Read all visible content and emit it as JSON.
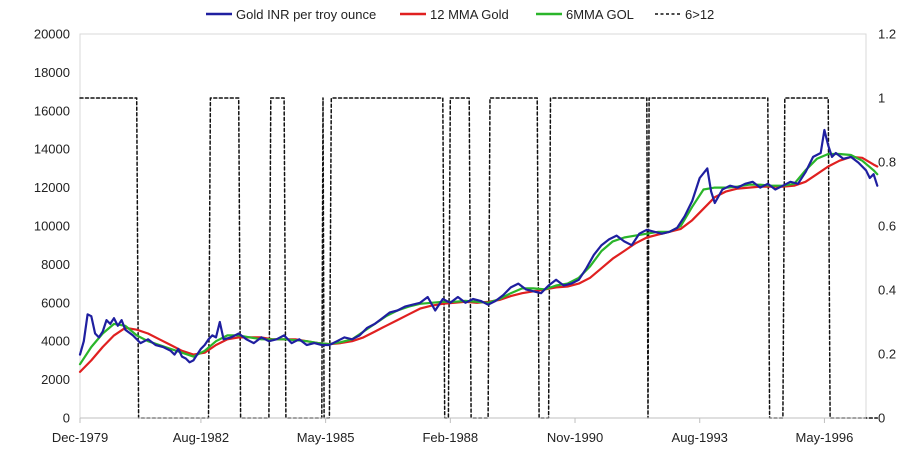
{
  "chart_data": {
    "type": "line",
    "title": "",
    "xlabel": "",
    "ylabel": "",
    "x_tick_labels": [
      "Dec-1979",
      "Aug-1982",
      "May-1985",
      "Feb-1988",
      "Nov-1990",
      "Aug-1993",
      "May-1996"
    ],
    "x_tick_months": [
      0,
      32,
      65,
      98,
      131,
      164,
      197
    ],
    "x_range_months": [
      0,
      208
    ],
    "ylim": [
      0,
      20000
    ],
    "y_ticks": [
      0,
      2000,
      4000,
      6000,
      8000,
      10000,
      12000,
      14000,
      16000,
      18000,
      20000
    ],
    "y2lim": [
      0,
      1.2
    ],
    "y2_ticks": [
      0,
      0.2,
      0.4,
      0.6,
      0.8,
      1,
      1.2
    ],
    "y2_tick_labels": [
      "0",
      "0.2",
      "0.4",
      "0.6",
      "0.8",
      "1",
      "1.2"
    ],
    "grid": false,
    "legend_position": "top",
    "series": [
      {
        "name": "Gold INR per troy ounce",
        "color": "#1f1fa0",
        "axis": "left",
        "points": [
          [
            0,
            3300
          ],
          [
            1,
            4000
          ],
          [
            2,
            5400
          ],
          [
            3,
            5300
          ],
          [
            4,
            4400
          ],
          [
            5,
            4200
          ],
          [
            6,
            4500
          ],
          [
            7,
            5100
          ],
          [
            8,
            4900
          ],
          [
            9,
            5200
          ],
          [
            10,
            4800
          ],
          [
            11,
            5100
          ],
          [
            12,
            4600
          ],
          [
            14,
            4300
          ],
          [
            16,
            3900
          ],
          [
            18,
            4100
          ],
          [
            20,
            3800
          ],
          [
            22,
            3700
          ],
          [
            24,
            3500
          ],
          [
            25,
            3300
          ],
          [
            26,
            3600
          ],
          [
            27,
            3200
          ],
          [
            28,
            3100
          ],
          [
            29,
            2900
          ],
          [
            30,
            3000
          ],
          [
            31,
            3300
          ],
          [
            32,
            3600
          ],
          [
            33,
            3800
          ],
          [
            34,
            4100
          ],
          [
            35,
            4300
          ],
          [
            36,
            4200
          ],
          [
            37,
            5000
          ],
          [
            38,
            4100
          ],
          [
            40,
            4200
          ],
          [
            42,
            4400
          ],
          [
            44,
            4100
          ],
          [
            46,
            3900
          ],
          [
            48,
            4200
          ],
          [
            50,
            4000
          ],
          [
            52,
            4100
          ],
          [
            54,
            4300
          ],
          [
            56,
            3900
          ],
          [
            58,
            4100
          ],
          [
            60,
            3800
          ],
          [
            62,
            3900
          ],
          [
            64,
            3800
          ],
          [
            66,
            3800
          ],
          [
            68,
            4000
          ],
          [
            70,
            4200
          ],
          [
            72,
            4100
          ],
          [
            74,
            4300
          ],
          [
            76,
            4700
          ],
          [
            78,
            4900
          ],
          [
            80,
            5200
          ],
          [
            82,
            5500
          ],
          [
            84,
            5600
          ],
          [
            86,
            5800
          ],
          [
            88,
            5900
          ],
          [
            90,
            6000
          ],
          [
            92,
            6300
          ],
          [
            94,
            5600
          ],
          [
            96,
            6200
          ],
          [
            98,
            6000
          ],
          [
            100,
            6300
          ],
          [
            102,
            6000
          ],
          [
            104,
            6200
          ],
          [
            106,
            6100
          ],
          [
            108,
            5900
          ],
          [
            110,
            6100
          ],
          [
            112,
            6400
          ],
          [
            114,
            6800
          ],
          [
            116,
            7000
          ],
          [
            118,
            6700
          ],
          [
            120,
            6600
          ],
          [
            122,
            6500
          ],
          [
            124,
            6900
          ],
          [
            126,
            7200
          ],
          [
            128,
            6900
          ],
          [
            130,
            7000
          ],
          [
            132,
            7200
          ],
          [
            134,
            7800
          ],
          [
            136,
            8500
          ],
          [
            138,
            9000
          ],
          [
            140,
            9300
          ],
          [
            142,
            9500
          ],
          [
            144,
            9200
          ],
          [
            146,
            9000
          ],
          [
            148,
            9600
          ],
          [
            150,
            9800
          ],
          [
            152,
            9700
          ],
          [
            154,
            9600
          ],
          [
            156,
            9700
          ],
          [
            158,
            9900
          ],
          [
            160,
            10500
          ],
          [
            162,
            11300
          ],
          [
            164,
            12500
          ],
          [
            166,
            13000
          ],
          [
            167,
            11800
          ],
          [
            168,
            11200
          ],
          [
            170,
            11900
          ],
          [
            172,
            12100
          ],
          [
            174,
            12000
          ],
          [
            176,
            12200
          ],
          [
            178,
            12300
          ],
          [
            180,
            12000
          ],
          [
            182,
            12200
          ],
          [
            184,
            11900
          ],
          [
            186,
            12100
          ],
          [
            188,
            12300
          ],
          [
            190,
            12200
          ],
          [
            192,
            12800
          ],
          [
            194,
            13600
          ],
          [
            196,
            13800
          ],
          [
            197,
            15000
          ],
          [
            198,
            14200
          ],
          [
            199,
            13600
          ],
          [
            200,
            13800
          ],
          [
            202,
            13500
          ],
          [
            204,
            13600
          ],
          [
            206,
            13300
          ],
          [
            208,
            12900
          ],
          [
            209,
            12500
          ],
          [
            210,
            12700
          ],
          [
            211,
            12100
          ]
        ]
      },
      {
        "name": "12 MMA Gold",
        "color": "#e02020",
        "axis": "left",
        "points": [
          [
            0,
            2400
          ],
          [
            3,
            3000
          ],
          [
            6,
            3700
          ],
          [
            9,
            4300
          ],
          [
            12,
            4700
          ],
          [
            15,
            4600
          ],
          [
            18,
            4400
          ],
          [
            21,
            4100
          ],
          [
            24,
            3800
          ],
          [
            27,
            3500
          ],
          [
            30,
            3300
          ],
          [
            33,
            3400
          ],
          [
            36,
            3800
          ],
          [
            39,
            4100
          ],
          [
            42,
            4200
          ],
          [
            45,
            4200
          ],
          [
            48,
            4200
          ],
          [
            51,
            4100
          ],
          [
            54,
            4100
          ],
          [
            57,
            4100
          ],
          [
            60,
            4000
          ],
          [
            63,
            3900
          ],
          [
            66,
            3850
          ],
          [
            69,
            3900
          ],
          [
            72,
            4000
          ],
          [
            75,
            4200
          ],
          [
            78,
            4500
          ],
          [
            81,
            4800
          ],
          [
            84,
            5100
          ],
          [
            87,
            5400
          ],
          [
            90,
            5700
          ],
          [
            93,
            5850
          ],
          [
            96,
            5950
          ],
          [
            99,
            6000
          ],
          [
            102,
            6050
          ],
          [
            105,
            6000
          ],
          [
            108,
            6050
          ],
          [
            111,
            6150
          ],
          [
            114,
            6350
          ],
          [
            117,
            6500
          ],
          [
            120,
            6600
          ],
          [
            123,
            6700
          ],
          [
            126,
            6800
          ],
          [
            129,
            6850
          ],
          [
            132,
            7000
          ],
          [
            135,
            7300
          ],
          [
            138,
            7800
          ],
          [
            141,
            8300
          ],
          [
            144,
            8700
          ],
          [
            147,
            9100
          ],
          [
            150,
            9400
          ],
          [
            153,
            9550
          ],
          [
            156,
            9700
          ],
          [
            159,
            9850
          ],
          [
            162,
            10300
          ],
          [
            165,
            10900
          ],
          [
            168,
            11500
          ],
          [
            171,
            11800
          ],
          [
            174,
            11950
          ],
          [
            177,
            12000
          ],
          [
            180,
            12050
          ],
          [
            183,
            12050
          ],
          [
            186,
            12050
          ],
          [
            189,
            12100
          ],
          [
            192,
            12300
          ],
          [
            195,
            12700
          ],
          [
            198,
            13100
          ],
          [
            201,
            13400
          ],
          [
            204,
            13600
          ],
          [
            207,
            13550
          ],
          [
            210,
            13200
          ],
          [
            211,
            13100
          ]
        ]
      },
      {
        "name": "6MMA GOL",
        "color": "#2ab52a",
        "axis": "left",
        "points": [
          [
            0,
            2800
          ],
          [
            3,
            3700
          ],
          [
            6,
            4400
          ],
          [
            9,
            4900
          ],
          [
            12,
            4800
          ],
          [
            15,
            4300
          ],
          [
            18,
            4000
          ],
          [
            21,
            3800
          ],
          [
            24,
            3600
          ],
          [
            27,
            3400
          ],
          [
            30,
            3200
          ],
          [
            33,
            3500
          ],
          [
            36,
            4000
          ],
          [
            39,
            4300
          ],
          [
            42,
            4300
          ],
          [
            45,
            4200
          ],
          [
            48,
            4100
          ],
          [
            51,
            4100
          ],
          [
            54,
            4100
          ],
          [
            57,
            4050
          ],
          [
            60,
            4000
          ],
          [
            63,
            3900
          ],
          [
            66,
            3850
          ],
          [
            69,
            3950
          ],
          [
            72,
            4100
          ],
          [
            75,
            4500
          ],
          [
            78,
            4900
          ],
          [
            81,
            5300
          ],
          [
            84,
            5600
          ],
          [
            87,
            5800
          ],
          [
            90,
            5950
          ],
          [
            93,
            6000
          ],
          [
            96,
            6050
          ],
          [
            99,
            6050
          ],
          [
            102,
            6100
          ],
          [
            105,
            6050
          ],
          [
            108,
            6000
          ],
          [
            111,
            6200
          ],
          [
            114,
            6500
          ],
          [
            117,
            6750
          ],
          [
            120,
            6750
          ],
          [
            123,
            6700
          ],
          [
            126,
            6900
          ],
          [
            129,
            7000
          ],
          [
            132,
            7300
          ],
          [
            135,
            7900
          ],
          [
            138,
            8700
          ],
          [
            141,
            9200
          ],
          [
            144,
            9400
          ],
          [
            147,
            9500
          ],
          [
            150,
            9600
          ],
          [
            153,
            9700
          ],
          [
            156,
            9700
          ],
          [
            159,
            10000
          ],
          [
            162,
            11000
          ],
          [
            165,
            11900
          ],
          [
            168,
            12000
          ],
          [
            171,
            12000
          ],
          [
            174,
            12050
          ],
          [
            177,
            12150
          ],
          [
            180,
            12150
          ],
          [
            183,
            12100
          ],
          [
            186,
            12100
          ],
          [
            189,
            12200
          ],
          [
            192,
            12900
          ],
          [
            195,
            13500
          ],
          [
            198,
            13750
          ],
          [
            201,
            13750
          ],
          [
            204,
            13700
          ],
          [
            207,
            13400
          ],
          [
            210,
            12900
          ],
          [
            211,
            12700
          ]
        ]
      },
      {
        "name": "6>12",
        "color": "#111111",
        "axis": "right",
        "dashed": true,
        "points": [
          [
            0,
            1
          ],
          [
            15,
            1
          ],
          [
            15.5,
            0
          ],
          [
            34,
            0
          ],
          [
            34.5,
            1
          ],
          [
            42,
            1
          ],
          [
            42.5,
            0
          ],
          [
            50,
            0
          ],
          [
            50.5,
            1
          ],
          [
            54,
            1
          ],
          [
            54.5,
            0
          ],
          [
            64,
            0
          ],
          [
            64.3,
            1
          ],
          [
            64.6,
            0
          ],
          [
            66,
            0
          ],
          [
            66.5,
            1
          ],
          [
            96,
            1
          ],
          [
            96.5,
            0
          ],
          [
            97.5,
            0
          ],
          [
            98,
            1
          ],
          [
            103,
            1
          ],
          [
            103.5,
            0
          ],
          [
            108,
            0
          ],
          [
            108.5,
            1
          ],
          [
            121,
            1
          ],
          [
            121.5,
            0
          ],
          [
            124,
            0
          ],
          [
            124.5,
            1
          ],
          [
            150,
            1
          ],
          [
            150.3,
            0
          ],
          [
            150.6,
            1
          ],
          [
            182,
            1
          ],
          [
            182.5,
            0
          ],
          [
            186,
            0
          ],
          [
            186.5,
            1
          ],
          [
            198,
            1
          ],
          [
            198.5,
            0
          ],
          [
            211,
            0
          ]
        ]
      }
    ]
  }
}
